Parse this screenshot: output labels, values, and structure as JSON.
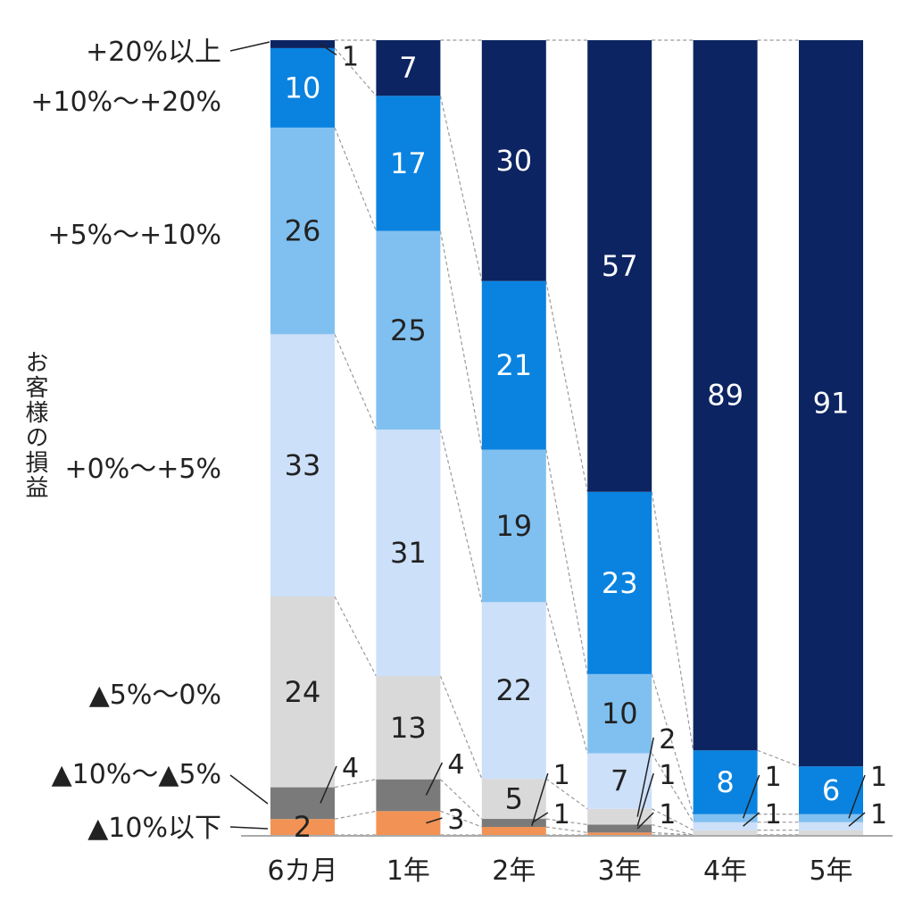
{
  "chart_data": {
    "type": "bar",
    "stacked": true,
    "percent": true,
    "title": "",
    "ylabel": "お客様の損益",
    "xlabel": "",
    "categories": [
      "6カ月",
      "1年",
      "2年",
      "3年",
      "4年",
      "5年"
    ],
    "series": [
      {
        "name": "▲10%以下",
        "color": "#f29355",
        "text_color": "#222222",
        "values": [
          2,
          3,
          1,
          0.3,
          0,
          0
        ],
        "labels": [
          "2",
          "3",
          "",
          "",
          "",
          ""
        ],
        "callouts": [
          false,
          true,
          false,
          false,
          false,
          false
        ]
      },
      {
        "name": "▲10%～▲5%",
        "color": "#7a7a7a",
        "text_color": "#222222",
        "values": [
          4,
          4,
          1,
          1,
          0,
          0
        ],
        "labels": [
          "4",
          "4",
          "1",
          "1",
          "",
          ""
        ],
        "callouts": [
          true,
          true,
          true,
          true,
          false,
          false
        ]
      },
      {
        "name": "▲5%～0%",
        "color": "#d9d9d9",
        "text_color": "#222222",
        "values": [
          24,
          13,
          5,
          2,
          0.6,
          0.6
        ],
        "labels": [
          "24",
          "13",
          "5",
          "2",
          "",
          ""
        ],
        "callouts": [
          false,
          false,
          false,
          true,
          false,
          false
        ]
      },
      {
        "name": "+0%～+5%",
        "color": "#cce0fa",
        "text_color": "#222222",
        "values": [
          33,
          31,
          22,
          7,
          1,
          1
        ],
        "labels": [
          "33",
          "31",
          "22",
          "7",
          "1",
          "1"
        ],
        "callouts": [
          false,
          false,
          false,
          false,
          true,
          true
        ]
      },
      {
        "name": "+5%～+10%",
        "color": "#80c0f0",
        "text_color": "#222222",
        "values": [
          26,
          25,
          19,
          10,
          1,
          1
        ],
        "labels": [
          "26",
          "25",
          "19",
          "10",
          "1",
          "1"
        ],
        "callouts": [
          false,
          false,
          false,
          false,
          true,
          true
        ]
      },
      {
        "name": "+10%～+20%",
        "color": "#0a83e0",
        "text_color": "#ffffff",
        "values": [
          10,
          17,
          21,
          23,
          8,
          6
        ],
        "labels": [
          "10",
          "17",
          "21",
          "23",
          "8",
          "6"
        ],
        "callouts": [
          false,
          false,
          false,
          false,
          false,
          false
        ]
      },
      {
        "name": "+20%以上",
        "color": "#0c2462",
        "text_color": "#ffffff",
        "values": [
          1,
          7,
          30,
          57,
          89,
          91
        ],
        "labels": [
          "1",
          "7",
          "30",
          "57",
          "89",
          "91"
        ],
        "callouts": [
          true,
          false,
          false,
          false,
          false,
          false
        ]
      }
    ],
    "grid": false,
    "legend": "left-aligned category labels"
  }
}
